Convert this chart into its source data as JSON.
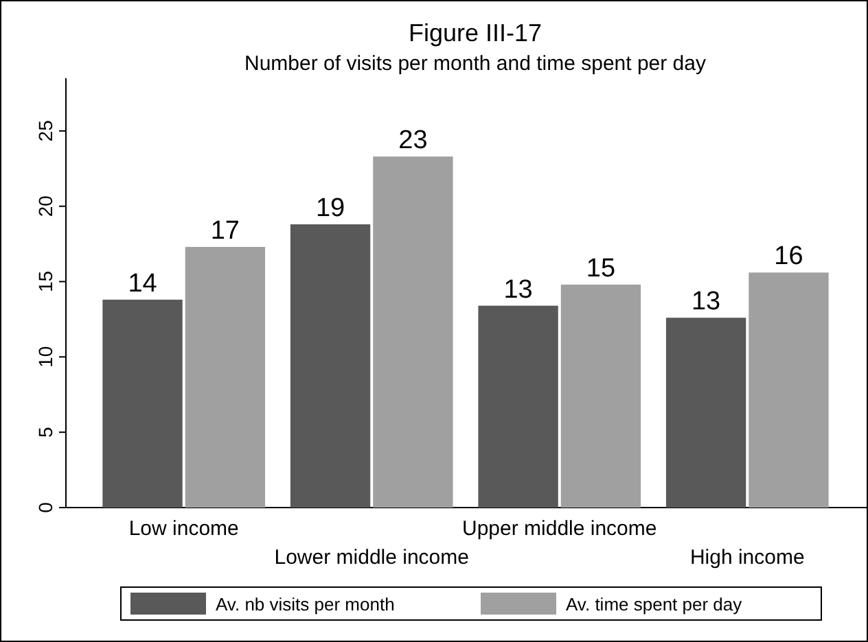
{
  "chart_data": {
    "type": "bar",
    "title": "Figure III-17",
    "subtitle": "Number of visits per month and time spent per day",
    "categories": [
      "Low income",
      "Lower middle income",
      "Upper middle income",
      "High income"
    ],
    "series": [
      {
        "name": "Av. nb visits per month",
        "color": "#595959",
        "values": [
          13.8,
          18.8,
          13.4,
          12.6
        ],
        "value_labels": [
          "14",
          "19",
          "13",
          "13"
        ]
      },
      {
        "name": "Av. time spent per day",
        "color": "#a0a0a0",
        "values": [
          17.3,
          23.3,
          14.8,
          15.6
        ],
        "value_labels": [
          "17",
          "23",
          "15",
          "16"
        ]
      }
    ],
    "ylim": [
      0,
      28.5
    ],
    "yticks": [
      0,
      5,
      10,
      15,
      20,
      25
    ],
    "grid": false,
    "legend": "bottom"
  }
}
